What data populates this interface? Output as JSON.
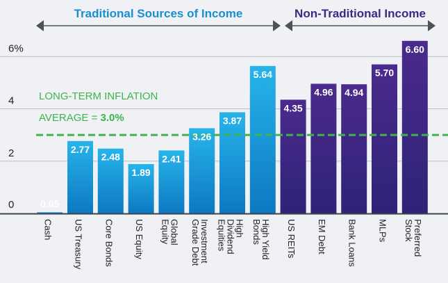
{
  "chart_data": {
    "type": "bar",
    "title": "",
    "xlabel": "",
    "ylabel": "",
    "ylim": [
      0,
      6.7
    ],
    "y_ticks": [
      {
        "value": 0,
        "label": "0"
      },
      {
        "value": 2,
        "label": "2"
      },
      {
        "value": 4,
        "label": "4"
      },
      {
        "value": 6,
        "label": "6%"
      }
    ],
    "groups": [
      {
        "name": "Traditional Sources of Income",
        "start": 0,
        "end": 7,
        "color": "#1a8fd0"
      },
      {
        "name": "Non-Traditional Income",
        "start": 8,
        "end": 12,
        "color": "#3d2883"
      }
    ],
    "categories": [
      [
        "Cash"
      ],
      [
        "US Treasury"
      ],
      [
        "Core Bonds"
      ],
      [
        "US Equity"
      ],
      [
        "Global",
        "Equity"
      ],
      [
        "Investment",
        "Grade Debt"
      ],
      [
        "High",
        "Dividend",
        "Equities"
      ],
      [
        "High Yield",
        "Bonds"
      ],
      [
        "US REITs"
      ],
      [
        "EM Debt"
      ],
      [
        "Bank Loans"
      ],
      [
        "MLPs"
      ],
      [
        "Preferred",
        "Stock"
      ]
    ],
    "values": [
      0.05,
      2.77,
      2.48,
      1.89,
      2.41,
      3.26,
      3.87,
      5.64,
      4.35,
      4.96,
      4.94,
      5.7,
      6.6
    ],
    "value_labels": [
      "0.05",
      "2.77",
      "2.48",
      "1.89",
      "2.41",
      "3.26",
      "3.87",
      "5.64",
      "4.35",
      "4.96",
      "4.94",
      "5.70",
      "6.60"
    ],
    "reference_line": {
      "value": 3.0,
      "label_line1": "LONG-TERM INFLATION",
      "label_line2_prefix": "AVERAGE = ",
      "label_line2_value": "3.0%",
      "color": "#3db54a"
    },
    "colors": {
      "traditional_top": "#27b4ea",
      "traditional_bottom": "#0d78c2",
      "nontraditional_top": "#4a2a8c",
      "nontraditional_bottom": "#2e2377",
      "value_label_dark": "#0d78c2",
      "grid": "#bcbfc4",
      "arrow": "#4f5358",
      "axis": "#3f4347"
    }
  }
}
